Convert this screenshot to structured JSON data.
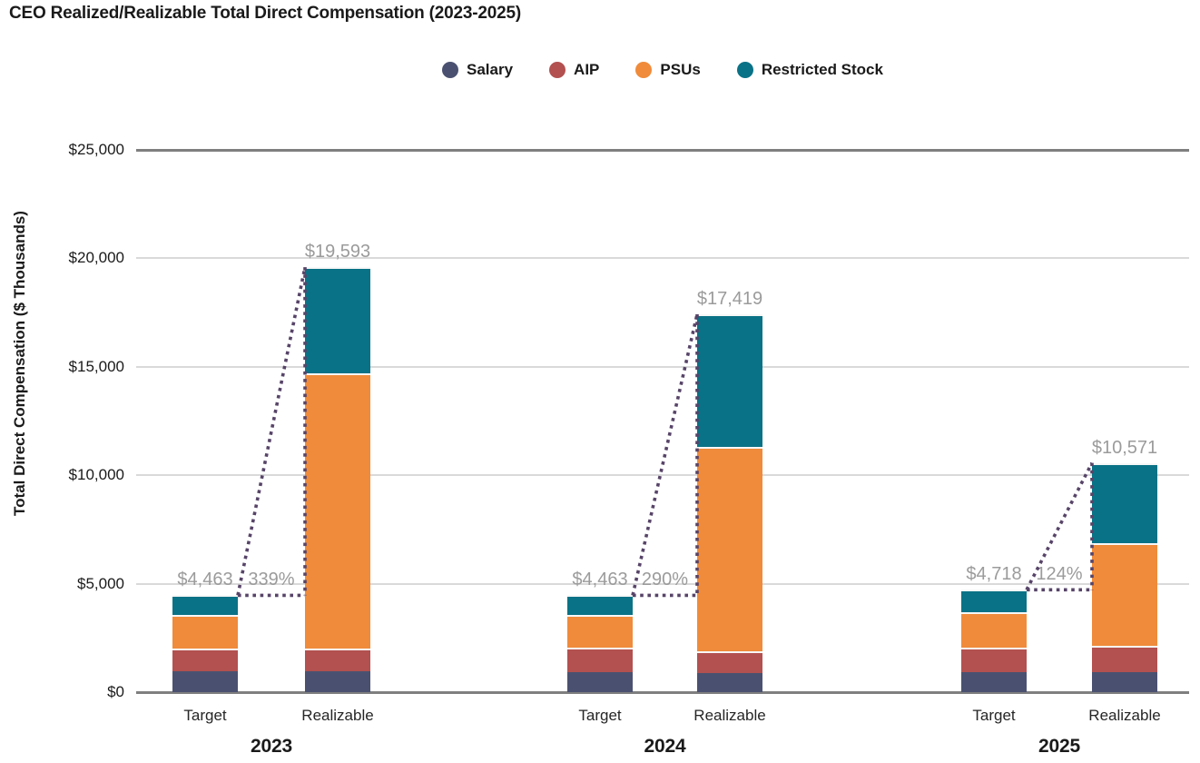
{
  "title": "CEO Realized/Realizable Total Direct Compensation (2023-2025)",
  "legend": {
    "items": [
      {
        "label": "Salary",
        "color": "#4a5170"
      },
      {
        "label": "AIP",
        "color": "#b25150"
      },
      {
        "label": "PSUs",
        "color": "#ef8b3b"
      },
      {
        "label": "Restricted Stock",
        "color": "#0a7286"
      }
    ]
  },
  "y_axis": {
    "title": "Total Direct Compensation ($ Thousands)",
    "min": 0,
    "max": 25000,
    "tick_step": 5000,
    "ticks": [
      {
        "value": 0,
        "label": "$0"
      },
      {
        "value": 5000,
        "label": "$5,000"
      },
      {
        "value": 10000,
        "label": "$10,000"
      },
      {
        "value": 15000,
        "label": "$15,000"
      },
      {
        "value": 20000,
        "label": "$20,000"
      },
      {
        "value": 25000,
        "label": "$25,000"
      }
    ]
  },
  "chart_data": {
    "type": "bar",
    "stacked": true,
    "title": "CEO Realized/Realizable Total Direct Compensation (2023-2025)",
    "ylabel": "Total Direct Compensation ($ Thousands)",
    "ylim": [
      0,
      25000
    ],
    "grid": true,
    "legend_position": "top",
    "series_names": [
      "Salary",
      "AIP",
      "PSUs",
      "Restricted Stock"
    ],
    "series_colors": [
      "#4a5170",
      "#b25150",
      "#ef8b3b",
      "#0a7286"
    ],
    "groups": [
      {
        "year": "2023",
        "bars": [
          {
            "label": "Target",
            "total": 4463,
            "total_label": "$4,463",
            "segments": [
              975,
              1030,
              1543,
              915
            ]
          },
          {
            "label": "Realizable",
            "total": 19593,
            "total_label": "$19,593",
            "segments": [
              975,
              1030,
              12710,
              4878
            ],
            "pct_change_label": "339%"
          }
        ]
      },
      {
        "year": "2024",
        "bars": [
          {
            "label": "Target",
            "total": 4463,
            "total_label": "$4,463",
            "segments": [
              902,
              1149,
              1498,
              914
            ]
          },
          {
            "label": "Realizable",
            "total": 17419,
            "total_label": "$17,419",
            "segments": [
              900,
              1000,
              9416,
              6103
            ],
            "pct_change_label": "290%"
          }
        ]
      },
      {
        "year": "2025",
        "bars": [
          {
            "label": "Target",
            "total": 4718,
            "total_label": "$4,718",
            "segments": [
              938,
              1108,
              1629,
              1043
            ]
          },
          {
            "label": "Realizable",
            "total": 10571,
            "total_label": "$10,571",
            "segments": [
              940,
              1175,
              4742,
              3714
            ],
            "pct_change_label": "124%"
          }
        ]
      }
    ]
  },
  "colors": {
    "gridline_light": "#d9d9d9",
    "axis_line_dark": "#7f7f7f",
    "data_label_gray": "#9b9b9b",
    "connector_purple": "#574468",
    "text_black": "#1a1a1a"
  }
}
